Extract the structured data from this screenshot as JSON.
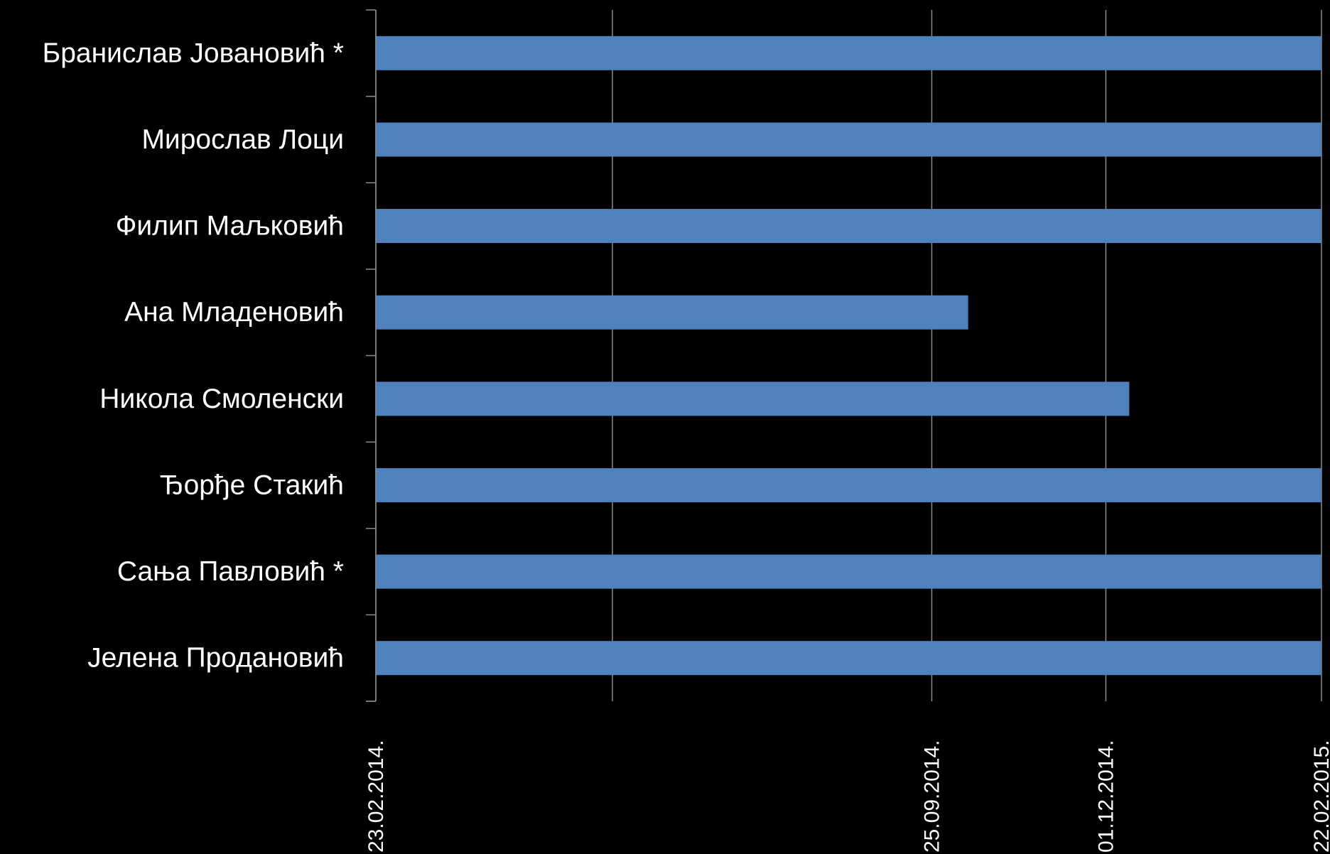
{
  "chart_data": {
    "type": "bar",
    "orientation": "horizontal",
    "title": "",
    "xlabel": "",
    "ylabel": "",
    "categories": [
      "Бранислав Јовановић *",
      "Мирослав Лоци",
      "Филип Маљковић",
      "Ана Младеновић",
      "Никола Смоленски",
      "Ђорђе Стакић",
      "Сања Павловић *",
      "Јелена Продановић"
    ],
    "values": [
      "22.02.2015.",
      "22.02.2015.",
      "22.02.2015.",
      "09.10.2014.",
      "10.12.2014.",
      "22.02.2015.",
      "22.02.2015.",
      "22.02.2015."
    ],
    "xlim": [
      "23.02.2014.",
      "22.02.2015."
    ],
    "x_tick_labels": [
      "23.02.2014.",
      "25.09.2014.",
      "01.12.2014.",
      "22.02.2015."
    ],
    "grid": true,
    "legend": "none",
    "colors": {
      "background": "#000000",
      "bar": "#4F81BD",
      "text": "#ffffff",
      "grid": "#8c8c8c",
      "axis": "#8c8c8c"
    }
  }
}
